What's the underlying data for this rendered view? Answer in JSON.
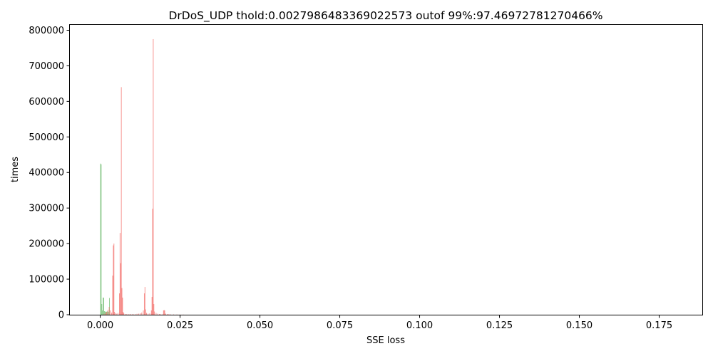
{
  "chart_data": {
    "type": "bar",
    "title": "DrDoS_UDP thold:0.0027986483369022573 outof 99%:97.46972781270466%",
    "xlabel": "SSE loss",
    "ylabel": "times",
    "xlim": [
      -0.0095,
      0.1885
    ],
    "ylim": [
      0,
      815000
    ],
    "xticks": [
      0.0,
      0.025,
      0.05,
      0.075,
      0.1,
      0.125,
      0.15,
      0.175
    ],
    "xtick_labels": [
      "0.000",
      "0.025",
      "0.050",
      "0.075",
      "0.100",
      "0.125",
      "0.150",
      "0.175"
    ],
    "yticks": [
      0,
      100000,
      200000,
      300000,
      400000,
      500000,
      600000,
      700000,
      800000
    ],
    "ytick_labels": [
      "0",
      "100000",
      "200000",
      "300000",
      "400000",
      "500000",
      "600000",
      "700000",
      "800000"
    ],
    "grid": false,
    "colors": {
      "benign": "#7fc47f",
      "attack": "#f47f7b"
    },
    "series": [
      {
        "color": "#7fc47f",
        "bin_width": 0.00018,
        "x": [
          0.0001,
          0.0003,
          0.0005,
          0.0007,
          0.0009,
          0.0011,
          0.0013,
          0.0015,
          0.0017,
          0.0019,
          0.0021,
          0.0023,
          0.0025,
          0.0027,
          0.0029
        ],
        "values": [
          425000,
          423000,
          30000,
          12000,
          48000,
          48000,
          10000,
          9000,
          8000,
          9000,
          8000,
          10000,
          9000,
          8000,
          47000
        ]
      },
      {
        "color": "#f47f7b",
        "bin_width": 0.00018,
        "x": [
          0.0012,
          0.0016,
          0.002,
          0.0024,
          0.0028,
          0.0032,
          0.0036,
          0.0039,
          0.0041,
          0.0043,
          0.0045,
          0.0048,
          0.0052,
          0.0056,
          0.006,
          0.0062,
          0.0064,
          0.0066,
          0.0068,
          0.007,
          0.0072,
          0.0074,
          0.0078,
          0.0082,
          0.0086,
          0.009,
          0.0095,
          0.01,
          0.0105,
          0.011,
          0.0115,
          0.012,
          0.0125,
          0.013,
          0.0135,
          0.0138,
          0.014,
          0.0142,
          0.0145,
          0.015,
          0.0155,
          0.016,
          0.0162,
          0.0164,
          0.0166,
          0.0168,
          0.017,
          0.0175,
          0.018,
          0.0185,
          0.019,
          0.0195,
          0.0198,
          0.02,
          0.0202,
          0.0205,
          0.021,
          0.0215,
          0.022,
          0.023,
          0.024,
          0.025,
          0.026
        ],
        "values": [
          3000,
          4000,
          8000,
          14000,
          22000,
          12000,
          6000,
          110000,
          195000,
          200000,
          8000,
          4000,
          3000,
          5000,
          60000,
          230000,
          145000,
          640000,
          75000,
          48000,
          8000,
          4000,
          2000,
          1500,
          1000,
          1500,
          2000,
          1500,
          1000,
          1500,
          2500,
          3000,
          4000,
          6000,
          12000,
          60000,
          78000,
          15000,
          5000,
          3000,
          4000,
          12000,
          50000,
          298000,
          775000,
          30000,
          9000,
          5000,
          3000,
          2000,
          1500,
          1000,
          12000,
          13000,
          12000,
          3000,
          2000,
          1500,
          1000,
          800,
          600,
          500,
          400
        ]
      }
    ]
  }
}
